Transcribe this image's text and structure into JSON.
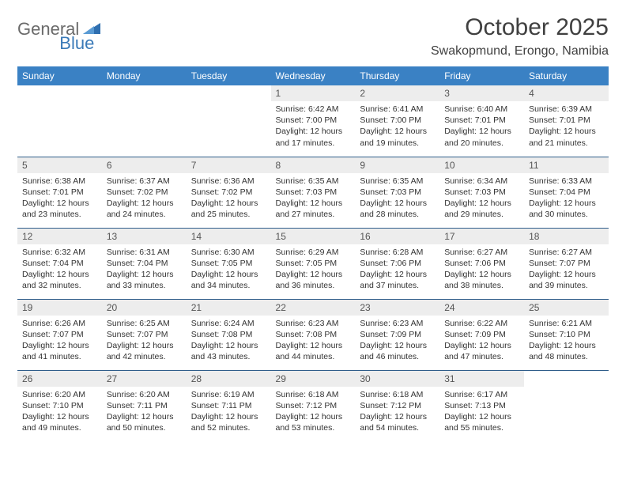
{
  "logo": {
    "text1": "General",
    "text2": "Blue"
  },
  "title": "October 2025",
  "location": "Swakopmund, Erongo, Namibia",
  "header_bg": "#3a81c4",
  "header_fg": "#ffffff",
  "daynum_bg": "#ededed",
  "border_color": "#2f5d8a",
  "dayNames": [
    "Sunday",
    "Monday",
    "Tuesday",
    "Wednesday",
    "Thursday",
    "Friday",
    "Saturday"
  ],
  "weeks": [
    [
      null,
      null,
      null,
      {
        "n": "1",
        "sr": "6:42 AM",
        "ss": "7:00 PM",
        "dl": "12 hours and 17 minutes."
      },
      {
        "n": "2",
        "sr": "6:41 AM",
        "ss": "7:00 PM",
        "dl": "12 hours and 19 minutes."
      },
      {
        "n": "3",
        "sr": "6:40 AM",
        "ss": "7:01 PM",
        "dl": "12 hours and 20 minutes."
      },
      {
        "n": "4",
        "sr": "6:39 AM",
        "ss": "7:01 PM",
        "dl": "12 hours and 21 minutes."
      }
    ],
    [
      {
        "n": "5",
        "sr": "6:38 AM",
        "ss": "7:01 PM",
        "dl": "12 hours and 23 minutes."
      },
      {
        "n": "6",
        "sr": "6:37 AM",
        "ss": "7:02 PM",
        "dl": "12 hours and 24 minutes."
      },
      {
        "n": "7",
        "sr": "6:36 AM",
        "ss": "7:02 PM",
        "dl": "12 hours and 25 minutes."
      },
      {
        "n": "8",
        "sr": "6:35 AM",
        "ss": "7:03 PM",
        "dl": "12 hours and 27 minutes."
      },
      {
        "n": "9",
        "sr": "6:35 AM",
        "ss": "7:03 PM",
        "dl": "12 hours and 28 minutes."
      },
      {
        "n": "10",
        "sr": "6:34 AM",
        "ss": "7:03 PM",
        "dl": "12 hours and 29 minutes."
      },
      {
        "n": "11",
        "sr": "6:33 AM",
        "ss": "7:04 PM",
        "dl": "12 hours and 30 minutes."
      }
    ],
    [
      {
        "n": "12",
        "sr": "6:32 AM",
        "ss": "7:04 PM",
        "dl": "12 hours and 32 minutes."
      },
      {
        "n": "13",
        "sr": "6:31 AM",
        "ss": "7:04 PM",
        "dl": "12 hours and 33 minutes."
      },
      {
        "n": "14",
        "sr": "6:30 AM",
        "ss": "7:05 PM",
        "dl": "12 hours and 34 minutes."
      },
      {
        "n": "15",
        "sr": "6:29 AM",
        "ss": "7:05 PM",
        "dl": "12 hours and 36 minutes."
      },
      {
        "n": "16",
        "sr": "6:28 AM",
        "ss": "7:06 PM",
        "dl": "12 hours and 37 minutes."
      },
      {
        "n": "17",
        "sr": "6:27 AM",
        "ss": "7:06 PM",
        "dl": "12 hours and 38 minutes."
      },
      {
        "n": "18",
        "sr": "6:27 AM",
        "ss": "7:07 PM",
        "dl": "12 hours and 39 minutes."
      }
    ],
    [
      {
        "n": "19",
        "sr": "6:26 AM",
        "ss": "7:07 PM",
        "dl": "12 hours and 41 minutes."
      },
      {
        "n": "20",
        "sr": "6:25 AM",
        "ss": "7:07 PM",
        "dl": "12 hours and 42 minutes."
      },
      {
        "n": "21",
        "sr": "6:24 AM",
        "ss": "7:08 PM",
        "dl": "12 hours and 43 minutes."
      },
      {
        "n": "22",
        "sr": "6:23 AM",
        "ss": "7:08 PM",
        "dl": "12 hours and 44 minutes."
      },
      {
        "n": "23",
        "sr": "6:23 AM",
        "ss": "7:09 PM",
        "dl": "12 hours and 46 minutes."
      },
      {
        "n": "24",
        "sr": "6:22 AM",
        "ss": "7:09 PM",
        "dl": "12 hours and 47 minutes."
      },
      {
        "n": "25",
        "sr": "6:21 AM",
        "ss": "7:10 PM",
        "dl": "12 hours and 48 minutes."
      }
    ],
    [
      {
        "n": "26",
        "sr": "6:20 AM",
        "ss": "7:10 PM",
        "dl": "12 hours and 49 minutes."
      },
      {
        "n": "27",
        "sr": "6:20 AM",
        "ss": "7:11 PM",
        "dl": "12 hours and 50 minutes."
      },
      {
        "n": "28",
        "sr": "6:19 AM",
        "ss": "7:11 PM",
        "dl": "12 hours and 52 minutes."
      },
      {
        "n": "29",
        "sr": "6:18 AM",
        "ss": "7:12 PM",
        "dl": "12 hours and 53 minutes."
      },
      {
        "n": "30",
        "sr": "6:18 AM",
        "ss": "7:12 PM",
        "dl": "12 hours and 54 minutes."
      },
      {
        "n": "31",
        "sr": "6:17 AM",
        "ss": "7:13 PM",
        "dl": "12 hours and 55 minutes."
      },
      null
    ]
  ],
  "labels": {
    "sunrise": "Sunrise:",
    "sunset": "Sunset:",
    "daylight": "Daylight:"
  }
}
